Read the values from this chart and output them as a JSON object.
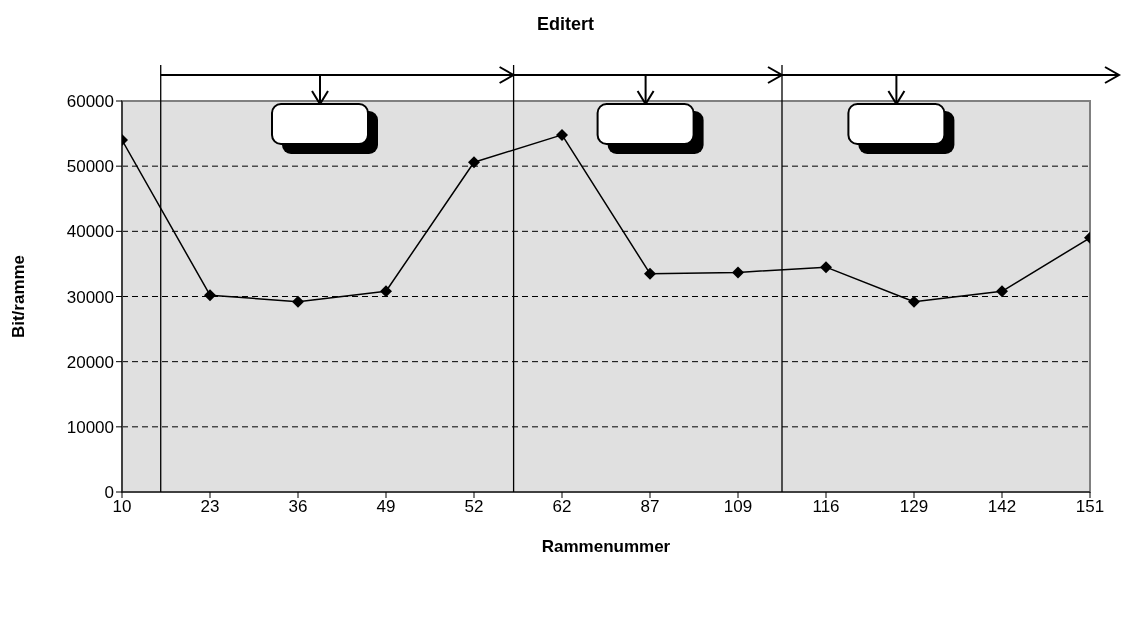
{
  "chart_data": {
    "type": "line",
    "title": "Editert",
    "xlabel": "Rammenummer",
    "ylabel": "Bit/ramme",
    "categories": [
      "10",
      "23",
      "36",
      "49",
      "52",
      "62",
      "87",
      "109",
      "116",
      "129",
      "142",
      "151"
    ],
    "series": [
      {
        "color": "#000000",
        "values": [
          54000,
          30200,
          29200,
          30800,
          50600,
          54800,
          33500,
          33700,
          34500,
          29200,
          30800,
          39000
        ]
      }
    ],
    "ylim": [
      0,
      60000
    ],
    "yticks": [
      0,
      10000,
      20000,
      30000,
      40000,
      50000,
      60000
    ],
    "grid": "y",
    "marker": "diamond",
    "line_style": "solid"
  }
}
